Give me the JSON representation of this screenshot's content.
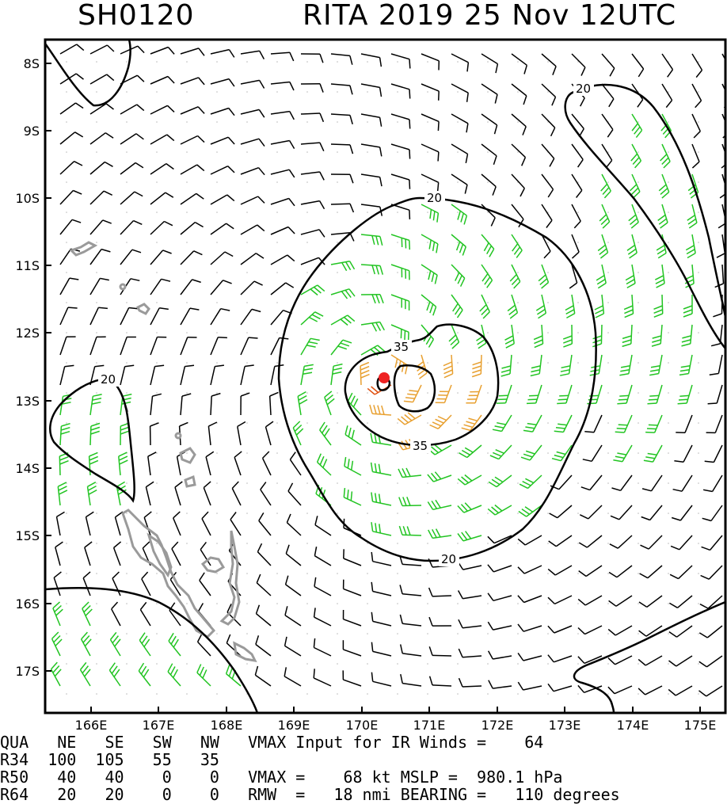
{
  "header": {
    "storm_id": "SH0120",
    "storm_info": "RITA 2019 25 Nov 12UTC"
  },
  "map": {
    "lat_labels": [
      "8S",
      "9S",
      "10S",
      "11S",
      "12S",
      "13S",
      "14S",
      "15S",
      "16S",
      "17S"
    ],
    "lon_labels": [
      "166E",
      "167E",
      "168E",
      "169E",
      "170E",
      "171E",
      "172E",
      "173E",
      "174E",
      "175E"
    ],
    "contour_labels": [
      "20",
      "20",
      "20",
      "35",
      "35",
      "20"
    ],
    "colors": {
      "frame": "#000000",
      "contour": "#000000",
      "coast": "#9a9a9a",
      "barb_low": "#000000",
      "barb_34": "#22c422",
      "barb_50": "#e8a030",
      "barb_64": "#e05010",
      "center": "#ee2222"
    }
  },
  "table": {
    "row_header": "QUA   NE   SE   SW   NW   VMAX Input for IR Winds =    64",
    "row_r34": "R34  100  105   55   35",
    "row_r50": "R50   40   40    0    0   VMAX =    68 kt MSLP =  980.1 hPa",
    "row_r64": "R64   20   20    0    0   RMW  =   18 nmi BEARING =   110 degrees"
  }
}
